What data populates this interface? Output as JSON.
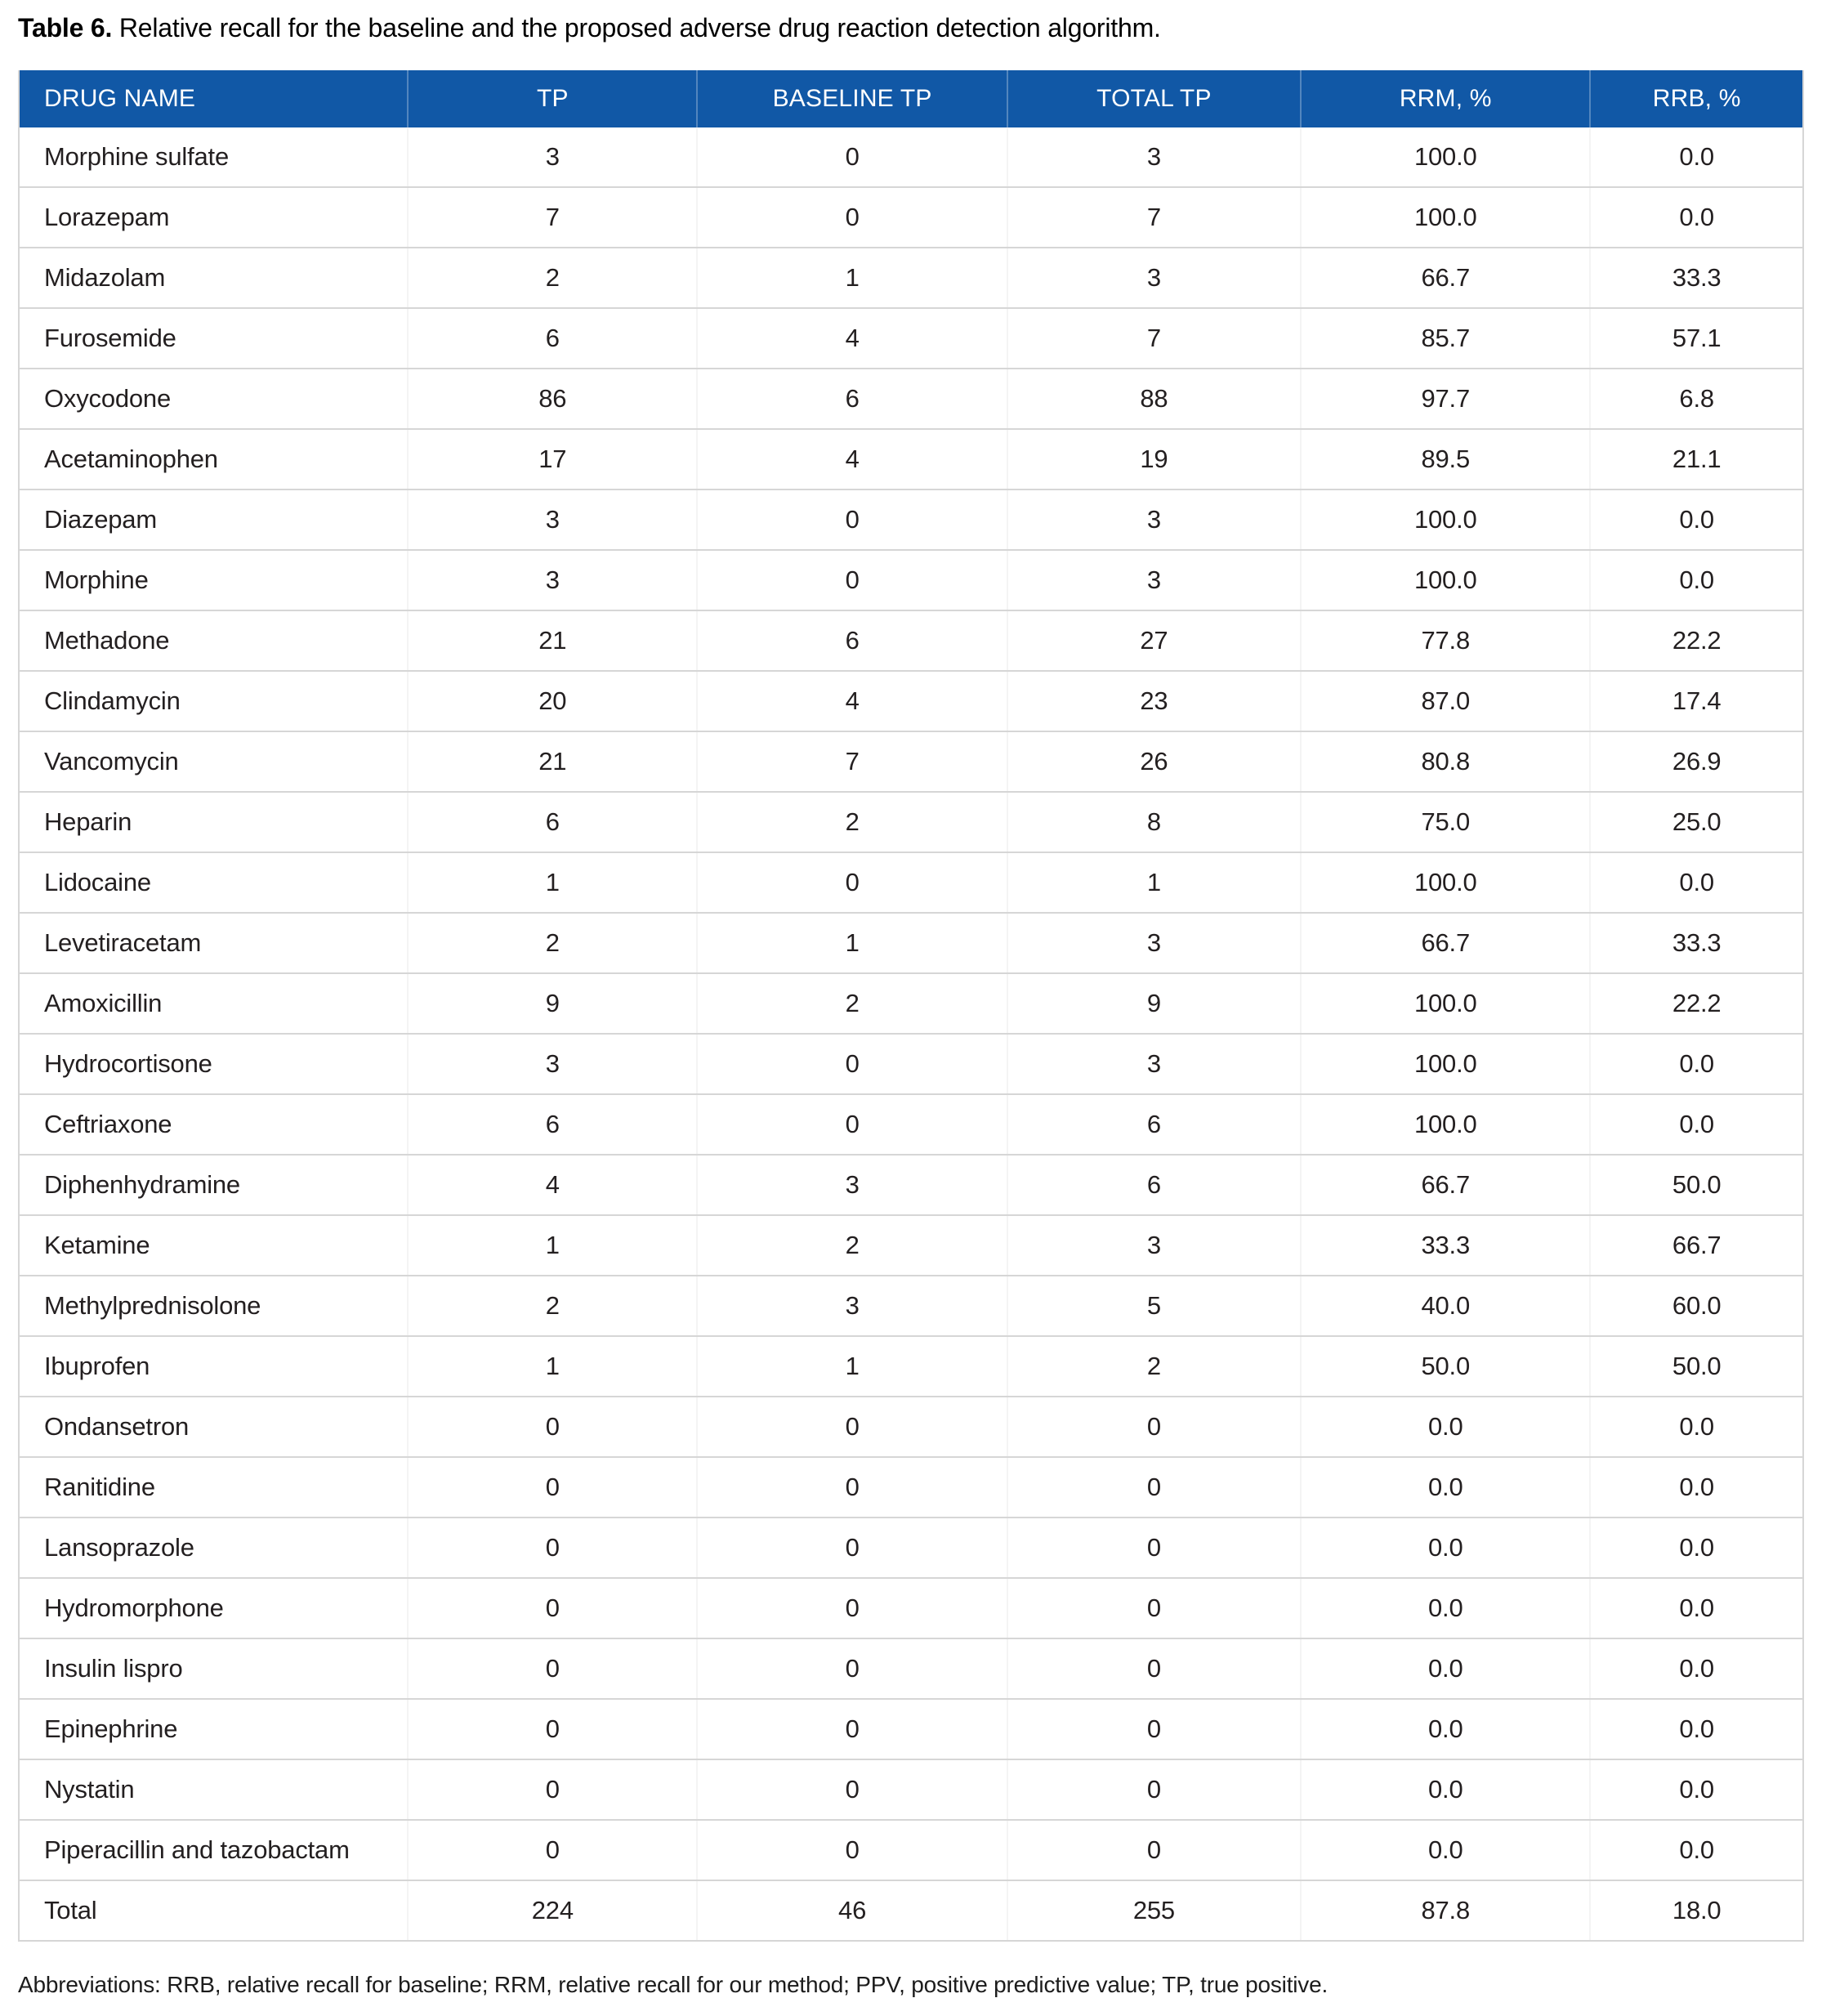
{
  "caption": {
    "label": "Table 6.",
    "text": "Relative recall for the baseline and the proposed adverse drug reaction detection algorithm."
  },
  "table": {
    "columns": [
      "DRUG NAME",
      "TP",
      "BASELINE TP",
      "TOTAL TP",
      "RRM, %",
      "RRB, %"
    ],
    "rows": [
      [
        "Morphine sulfate",
        "3",
        "0",
        "3",
        "100.0",
        "0.0"
      ],
      [
        "Lorazepam",
        "7",
        "0",
        "7",
        "100.0",
        "0.0"
      ],
      [
        "Midazolam",
        "2",
        "1",
        "3",
        "66.7",
        "33.3"
      ],
      [
        "Furosemide",
        "6",
        "4",
        "7",
        "85.7",
        "57.1"
      ],
      [
        "Oxycodone",
        "86",
        "6",
        "88",
        "97.7",
        "6.8"
      ],
      [
        "Acetaminophen",
        "17",
        "4",
        "19",
        "89.5",
        "21.1"
      ],
      [
        "Diazepam",
        "3",
        "0",
        "3",
        "100.0",
        "0.0"
      ],
      [
        "Morphine",
        "3",
        "0",
        "3",
        "100.0",
        "0.0"
      ],
      [
        "Methadone",
        "21",
        "6",
        "27",
        "77.8",
        "22.2"
      ],
      [
        "Clindamycin",
        "20",
        "4",
        "23",
        "87.0",
        "17.4"
      ],
      [
        "Vancomycin",
        "21",
        "7",
        "26",
        "80.8",
        "26.9"
      ],
      [
        "Heparin",
        "6",
        "2",
        "8",
        "75.0",
        "25.0"
      ],
      [
        "Lidocaine",
        "1",
        "0",
        "1",
        "100.0",
        "0.0"
      ],
      [
        "Levetiracetam",
        "2",
        "1",
        "3",
        "66.7",
        "33.3"
      ],
      [
        "Amoxicillin",
        "9",
        "2",
        "9",
        "100.0",
        "22.2"
      ],
      [
        "Hydrocortisone",
        "3",
        "0",
        "3",
        "100.0",
        "0.0"
      ],
      [
        "Ceftriaxone",
        "6",
        "0",
        "6",
        "100.0",
        "0.0"
      ],
      [
        "Diphenhydramine",
        "4",
        "3",
        "6",
        "66.7",
        "50.0"
      ],
      [
        "Ketamine",
        "1",
        "2",
        "3",
        "33.3",
        "66.7"
      ],
      [
        "Methylprednisolone",
        "2",
        "3",
        "5",
        "40.0",
        "60.0"
      ],
      [
        "Ibuprofen",
        "1",
        "1",
        "2",
        "50.0",
        "50.0"
      ],
      [
        "Ondansetron",
        "0",
        "0",
        "0",
        "0.0",
        "0.0"
      ],
      [
        "Ranitidine",
        "0",
        "0",
        "0",
        "0.0",
        "0.0"
      ],
      [
        "Lansoprazole",
        "0",
        "0",
        "0",
        "0.0",
        "0.0"
      ],
      [
        "Hydromorphone",
        "0",
        "0",
        "0",
        "0.0",
        "0.0"
      ],
      [
        "Insulin lispro",
        "0",
        "0",
        "0",
        "0.0",
        "0.0"
      ],
      [
        "Epinephrine",
        "0",
        "0",
        "0",
        "0.0",
        "0.0"
      ],
      [
        "Nystatin",
        "0",
        "0",
        "0",
        "0.0",
        "0.0"
      ],
      [
        "Piperacillin and tazobactam",
        "0",
        "0",
        "0",
        "0.0",
        "0.0"
      ],
      [
        "Total",
        "224",
        "46",
        "255",
        "87.8",
        "18.0"
      ]
    ]
  },
  "footnote": "Abbreviations: RRB, relative recall for baseline; RRM, relative recall for our method; PPV, positive predictive value; TP, true positive.",
  "colors": {
    "header_bg": "#1158A6",
    "header_text": "#FFFFFF",
    "grid_line": "#D6D6D6",
    "body_text": "#231F20"
  }
}
